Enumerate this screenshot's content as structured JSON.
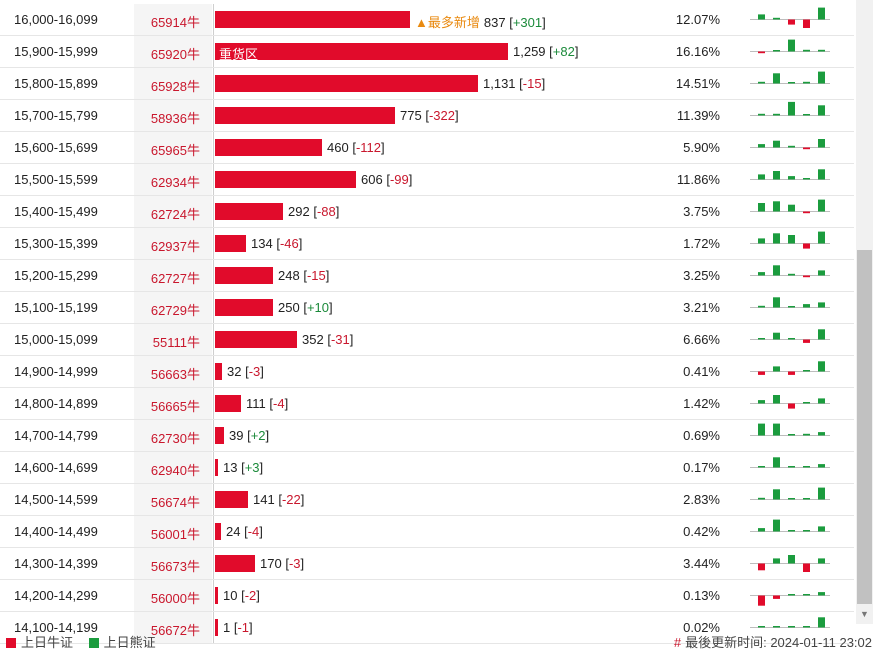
{
  "colors": {
    "bull": "#e10b2b",
    "bear": "#1b9c3e",
    "highlight": "#e98a10"
  },
  "rows": [
    {
      "range": "16,000-16,099",
      "code": "65914牛",
      "qty": 837,
      "qty_label": "837",
      "change": "+301",
      "dir": "up",
      "pct": "12.07%",
      "tag": "▲最多新增",
      "mini": [
        3,
        1,
        -3,
        -5,
        7,
        0
      ]
    },
    {
      "range": "15,900-15,999",
      "code": "65920牛",
      "qty": 1259,
      "qty_label": "1,259",
      "change": "+82",
      "dir": "up",
      "pct": "16.16%",
      "bar_label": "重货区",
      "mini": [
        -1,
        0,
        7,
        1,
        1,
        1
      ]
    },
    {
      "range": "15,800-15,899",
      "code": "65928牛",
      "qty": 1131,
      "qty_label": "1,131",
      "change": "-15",
      "dir": "down",
      "pct": "14.51%",
      "mini": [
        1,
        6,
        0,
        1,
        7,
        -1
      ]
    },
    {
      "range": "15,700-15,799",
      "code": "58936牛",
      "qty": 775,
      "qty_label": "775",
      "change": "-322",
      "dir": "down",
      "pct": "11.39%",
      "mini": [
        1,
        1,
        8,
        0,
        6,
        -6
      ]
    },
    {
      "range": "15,600-15,699",
      "code": "65965牛",
      "qty": 460,
      "qty_label": "460",
      "change": "-112",
      "dir": "down",
      "pct": "5.90%",
      "mini": [
        2,
        4,
        1,
        -1,
        5,
        -3
      ]
    },
    {
      "range": "15,500-15,599",
      "code": "62934牛",
      "qty": 606,
      "qty_label": "606",
      "change": "-99",
      "dir": "down",
      "pct": "11.86%",
      "mini": [
        3,
        5,
        2,
        0,
        6,
        -5
      ]
    },
    {
      "range": "15,400-15,499",
      "code": "62724牛",
      "qty": 292,
      "qty_label": "292",
      "change": "-88",
      "dir": "down",
      "pct": "3.75%",
      "mini": [
        5,
        6,
        4,
        -1,
        7,
        -6
      ]
    },
    {
      "range": "15,300-15,399",
      "code": "62937牛",
      "qty": 134,
      "qty_label": "134",
      "change": "-46",
      "dir": "down",
      "pct": "1.72%",
      "mini": [
        3,
        6,
        5,
        -3,
        7,
        -6
      ]
    },
    {
      "range": "15,200-15,299",
      "code": "62727牛",
      "qty": 248,
      "qty_label": "248",
      "change": "-15",
      "dir": "down",
      "pct": "3.25%",
      "mini": [
        2,
        6,
        1,
        -1,
        3,
        -2
      ]
    },
    {
      "range": "15,100-15,199",
      "code": "62729牛",
      "qty": 250,
      "qty_label": "250",
      "change": "+10",
      "dir": "up",
      "pct": "3.21%",
      "mini": [
        1,
        6,
        0,
        2,
        3,
        0
      ]
    },
    {
      "range": "15,000-15,099",
      "code": "55111牛",
      "qty": 352,
      "qty_label": "352",
      "change": "-31",
      "dir": "down",
      "pct": "6.66%",
      "mini": [
        0,
        4,
        0,
        -2,
        6,
        -3
      ]
    },
    {
      "range": "14,900-14,999",
      "code": "56663牛",
      "qty": 32,
      "qty_label": "32",
      "change": "-3",
      "dir": "down",
      "pct": "0.41%",
      "mini": [
        -2,
        3,
        -2,
        0,
        6,
        -2
      ]
    },
    {
      "range": "14,800-14,899",
      "code": "56665牛",
      "qty": 111,
      "qty_label": "111",
      "change": "-4",
      "dir": "down",
      "pct": "1.42%",
      "mini": [
        2,
        5,
        -3,
        0,
        3,
        -1
      ]
    },
    {
      "range": "14,700-14,799",
      "code": "62730牛",
      "qty": 39,
      "qty_label": "39",
      "change": "+2",
      "dir": "up",
      "pct": "0.69%",
      "mini": [
        7,
        7,
        0,
        1,
        2,
        0
      ]
    },
    {
      "range": "14,600-14,699",
      "code": "62940牛",
      "qty": 13,
      "qty_label": "13",
      "change": "+3",
      "dir": "up",
      "pct": "0.17%",
      "mini": [
        0,
        6,
        0,
        0,
        2,
        2
      ]
    },
    {
      "range": "14,500-14,599",
      "code": "56674牛",
      "qty": 141,
      "qty_label": "141",
      "change": "-22",
      "dir": "down",
      "pct": "2.83%",
      "mini": [
        1,
        6,
        0,
        0,
        7,
        -6
      ]
    },
    {
      "range": "14,400-14,499",
      "code": "56001牛",
      "qty": 24,
      "qty_label": "24",
      "change": "-4",
      "dir": "down",
      "pct": "0.42%",
      "mini": [
        2,
        7,
        0,
        0,
        3,
        -4
      ]
    },
    {
      "range": "14,300-14,399",
      "code": "56673牛",
      "qty": 170,
      "qty_label": "170",
      "change": "-3",
      "dir": "down",
      "pct": "3.44%",
      "mini": [
        -4,
        3,
        5,
        -5,
        3,
        -3
      ]
    },
    {
      "range": "14,200-14,299",
      "code": "56000牛",
      "qty": 10,
      "qty_label": "10",
      "change": "-2",
      "dir": "down",
      "pct": "0.13%",
      "mini": [
        -6,
        -2,
        0,
        0,
        2,
        -2
      ]
    },
    {
      "range": "14,100-14,199",
      "code": "56672牛",
      "qty": 1,
      "qty_label": "1",
      "change": "-1",
      "dir": "down",
      "pct": "0.02%",
      "mini": [
        0,
        0,
        0,
        0,
        6,
        -7
      ]
    }
  ],
  "bar_scale_max": 1259,
  "legend": {
    "bull_label": "上日牛证",
    "bear_label": "上日熊证"
  },
  "footer": {
    "hash": "#",
    "updated_label": "最後更新时间:",
    "updated_time": "2024-01-11 23:02"
  }
}
